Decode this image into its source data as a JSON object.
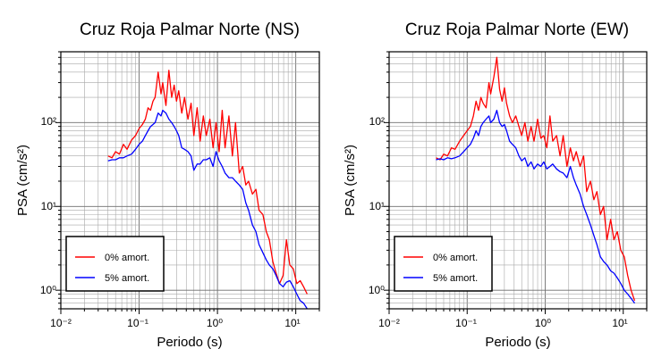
{
  "chart_data": [
    {
      "type": "line",
      "title": "Cruz Roja Palmar Norte (NS)",
      "xlabel": "Periodo (s)",
      "ylabel": "PSA (cm/s²)",
      "xscale": "log",
      "yscale": "log",
      "xlim": [
        0.01,
        20
      ],
      "ylim": [
        0.6,
        700
      ],
      "xtick_labels": [
        "10⁻²",
        "10⁻¹",
        "10⁰",
        "10¹"
      ],
      "ytick_labels": [
        "10⁰",
        "10¹",
        "10²"
      ],
      "grid": true,
      "legend_placement": "bottom-left",
      "series": [
        {
          "name": "0% amort.",
          "color": "#ff0000",
          "x": [
            0.04,
            0.045,
            0.05,
            0.056,
            0.063,
            0.07,
            0.08,
            0.09,
            0.1,
            0.11,
            0.12,
            0.13,
            0.14,
            0.15,
            0.16,
            0.175,
            0.19,
            0.2,
            0.22,
            0.24,
            0.26,
            0.28,
            0.3,
            0.32,
            0.35,
            0.38,
            0.42,
            0.46,
            0.5,
            0.55,
            0.6,
            0.66,
            0.72,
            0.8,
            0.88,
            0.96,
            1.05,
            1.15,
            1.25,
            1.4,
            1.55,
            1.7,
            1.9,
            2.1,
            2.3,
            2.5,
            2.8,
            3.1,
            3.4,
            3.8,
            4.2,
            4.6,
            5.1,
            5.6,
            6.2,
            6.9,
            7.6,
            8.4,
            9.3,
            10.3,
            11.4,
            12.6,
            14
          ],
          "y": [
            40,
            38,
            45,
            42,
            55,
            48,
            62,
            70,
            85,
            95,
            110,
            150,
            140,
            180,
            200,
            400,
            220,
            300,
            160,
            420,
            200,
            280,
            180,
            240,
            130,
            200,
            110,
            170,
            70,
            150,
            60,
            120,
            70,
            110,
            50,
            100,
            45,
            140,
            50,
            120,
            40,
            100,
            25,
            30,
            18,
            20,
            14,
            16,
            9,
            8,
            5,
            4,
            2.2,
            1.6,
            1.2,
            1.5,
            4,
            2,
            1.8,
            1.2,
            1.3,
            1.1,
            0.9
          ]
        },
        {
          "name": "5% amort.",
          "color": "#0000ff",
          "x": [
            0.04,
            0.045,
            0.05,
            0.056,
            0.063,
            0.07,
            0.08,
            0.09,
            0.1,
            0.11,
            0.12,
            0.13,
            0.14,
            0.15,
            0.16,
            0.175,
            0.19,
            0.2,
            0.22,
            0.24,
            0.26,
            0.28,
            0.3,
            0.32,
            0.35,
            0.38,
            0.42,
            0.46,
            0.5,
            0.55,
            0.6,
            0.66,
            0.72,
            0.8,
            0.88,
            0.96,
            1.05,
            1.15,
            1.25,
            1.4,
            1.55,
            1.7,
            1.9,
            2.1,
            2.3,
            2.5,
            2.8,
            3.1,
            3.4,
            3.8,
            4.2,
            4.6,
            5.1,
            5.6,
            6.2,
            6.9,
            7.6,
            8.4,
            9.3,
            10.3,
            11.4,
            12.6,
            14
          ],
          "y": [
            35,
            36,
            36,
            38,
            38,
            40,
            42,
            48,
            55,
            60,
            70,
            80,
            90,
            95,
            100,
            130,
            120,
            140,
            130,
            110,
            100,
            90,
            80,
            70,
            50,
            48,
            45,
            40,
            27,
            32,
            32,
            36,
            36,
            38,
            30,
            45,
            35,
            30,
            25,
            22,
            22,
            20,
            18,
            16,
            11,
            9,
            6,
            5,
            3.5,
            2.8,
            2.3,
            2,
            1.8,
            1.5,
            1.2,
            1.1,
            1.25,
            1.3,
            1.1,
            0.9,
            0.75,
            0.7,
            0.6
          ]
        }
      ]
    },
    {
      "type": "line",
      "title": "Cruz Roja Palmar Norte (EW)",
      "xlabel": "Periodo (s)",
      "ylabel": "PSA (cm/s²)",
      "xscale": "log",
      "yscale": "log",
      "xlim": [
        0.01,
        20
      ],
      "ylim": [
        0.6,
        700
      ],
      "xtick_labels": [
        "10⁻²",
        "10⁻¹",
        "10⁰",
        "10¹"
      ],
      "ytick_labels": [
        "10⁰",
        "10¹",
        "10²"
      ],
      "grid": true,
      "legend_placement": "bottom-left",
      "series": [
        {
          "name": "0% amort.",
          "color": "#ff0000",
          "x": [
            0.04,
            0.045,
            0.05,
            0.056,
            0.063,
            0.07,
            0.08,
            0.09,
            0.1,
            0.11,
            0.12,
            0.13,
            0.14,
            0.15,
            0.16,
            0.175,
            0.19,
            0.2,
            0.22,
            0.24,
            0.26,
            0.28,
            0.3,
            0.32,
            0.35,
            0.38,
            0.42,
            0.46,
            0.5,
            0.55,
            0.6,
            0.66,
            0.72,
            0.8,
            0.88,
            0.96,
            1.05,
            1.15,
            1.25,
            1.4,
            1.55,
            1.7,
            1.9,
            2.1,
            2.3,
            2.5,
            2.8,
            3.1,
            3.4,
            3.8,
            4.2,
            4.6,
            5.1,
            5.6,
            6.2,
            6.9,
            7.6,
            8.4,
            9.3,
            10.3,
            11.4,
            12.6,
            14
          ],
          "y": [
            38,
            36,
            42,
            40,
            50,
            48,
            60,
            70,
            80,
            90,
            120,
            180,
            140,
            200,
            170,
            150,
            300,
            220,
            350,
            600,
            250,
            180,
            260,
            170,
            120,
            100,
            120,
            90,
            70,
            100,
            60,
            90,
            60,
            110,
            65,
            70,
            50,
            120,
            60,
            70,
            40,
            70,
            30,
            50,
            35,
            45,
            30,
            40,
            15,
            20,
            12,
            15,
            8,
            10,
            4,
            7,
            4,
            5,
            3,
            2.5,
            1.5,
            1,
            0.75
          ]
        },
        {
          "name": "5% amort.",
          "color": "#0000ff",
          "x": [
            0.04,
            0.045,
            0.05,
            0.056,
            0.063,
            0.07,
            0.08,
            0.09,
            0.1,
            0.11,
            0.12,
            0.13,
            0.14,
            0.15,
            0.16,
            0.175,
            0.19,
            0.2,
            0.22,
            0.24,
            0.26,
            0.28,
            0.3,
            0.32,
            0.35,
            0.38,
            0.42,
            0.46,
            0.5,
            0.55,
            0.6,
            0.66,
            0.72,
            0.8,
            0.88,
            0.96,
            1.05,
            1.15,
            1.25,
            1.4,
            1.55,
            1.7,
            1.9,
            2.1,
            2.3,
            2.5,
            2.8,
            3.1,
            3.4,
            3.8,
            4.2,
            4.6,
            5.1,
            5.6,
            6.2,
            6.9,
            7.6,
            8.4,
            9.3,
            10.3,
            11.4,
            12.6,
            14
          ],
          "y": [
            36,
            37,
            36,
            38,
            37,
            38,
            40,
            45,
            50,
            55,
            65,
            80,
            70,
            90,
            100,
            110,
            120,
            100,
            110,
            140,
            100,
            90,
            95,
            80,
            60,
            55,
            50,
            40,
            35,
            38,
            30,
            34,
            28,
            32,
            30,
            34,
            28,
            30,
            32,
            28,
            26,
            25,
            22,
            30,
            22,
            18,
            14,
            10,
            8,
            6,
            4.5,
            3.5,
            2.5,
            2.2,
            2,
            1.7,
            1.6,
            1.4,
            1.2,
            1,
            0.9,
            0.8,
            0.7
          ]
        }
      ]
    }
  ]
}
